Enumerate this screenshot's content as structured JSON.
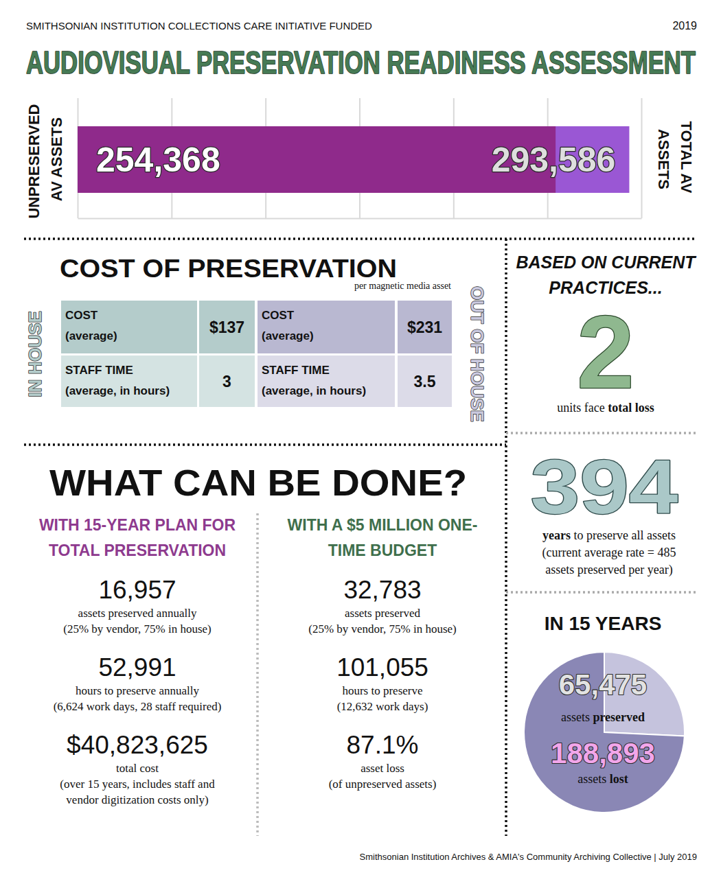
{
  "header": {
    "funder": "SMITHSONIAN INSTITUTION COLLECTIONS CARE INITIATIVE FUNDED",
    "year": "2019",
    "title": "AUDIOVISUAL PRESERVATION READINESS ASSESSMENT"
  },
  "chart_data": [
    {
      "type": "bar",
      "orientation": "horizontal",
      "categories": [
        null
      ],
      "series": [
        {
          "name": "UNPRESERVED AV ASSETS",
          "color": "#8f2a8b",
          "values": [
            254368
          ],
          "value_labels": [
            "254,368"
          ]
        },
        {
          "name": "TOTAL AV ASSETS",
          "color": "#9a57d4",
          "values": [
            293586
          ],
          "value_labels": [
            "293,586"
          ]
        }
      ],
      "xlim": [
        0,
        300000
      ],
      "xticks": [
        0,
        50000,
        100000,
        150000,
        200000,
        250000,
        300000
      ],
      "grid": true,
      "stacked": false,
      "tick_labels": false,
      "data_labels": true
    },
    {
      "type": "pie",
      "title": "IN 15 YEARS",
      "categories": [
        "assets preserved",
        "assets lost"
      ],
      "values": [
        65475,
        188893
      ],
      "value_labels": [
        "65,475",
        "188,893"
      ],
      "colors": [
        "#c5c3dd",
        "#8a87b5"
      ],
      "data_labels": true
    }
  ],
  "cost": {
    "title": "COST OF PRESERVATION",
    "subtitle": "per magnetic media asset",
    "groups": [
      {
        "label": "IN HOUSE",
        "rows": [
          {
            "label": [
              "COST",
              "(average)"
            ],
            "value": "$137"
          },
          {
            "label": [
              "STAFF TIME",
              "(average, in hours)"
            ],
            "value": "3"
          }
        ]
      },
      {
        "label": "OUT OF HOUSE",
        "rows": [
          {
            "label": [
              "COST",
              "(average)"
            ],
            "value": "$231"
          },
          {
            "label": [
              "STAFF TIME",
              "(average, in hours)"
            ],
            "value": "3.5"
          }
        ]
      }
    ]
  },
  "current": {
    "heading": [
      "BASED ON CURRENT",
      "PRACTICES..."
    ],
    "units": "2",
    "units_caption": [
      "units face ",
      "total loss"
    ],
    "years": "394",
    "years_caption": [
      "years",
      " to preserve all assets"
    ],
    "rate_note": [
      "(current average rate = 485",
      "assets preserved per year)"
    ]
  },
  "what": {
    "title": "WHAT CAN BE DONE?",
    "columns": [
      {
        "heading": [
          "WITH 15-YEAR PLAN FOR",
          "TOTAL PRESERVATION"
        ],
        "items": [
          {
            "value": "16,957",
            "lines": [
              "assets preserved annually",
              "(25% by vendor, 75% in house)"
            ]
          },
          {
            "value": "52,991",
            "lines": [
              "hours to preserve annually",
              "(6,624 work days, 28 staff required)"
            ]
          },
          {
            "value": "$40,823,625",
            "lines": [
              "total cost",
              "(over 15 years, includes staff and",
              "vendor digitization costs only)"
            ]
          }
        ]
      },
      {
        "heading": [
          "WITH A $5 MILLION ONE-",
          "TIME BUDGET"
        ],
        "items": [
          {
            "value": "32,783",
            "lines": [
              "assets preserved",
              "(25% by vendor, 75% in house)"
            ]
          },
          {
            "value": "101,055",
            "lines": [
              "hours to preserve",
              "(12,632 work days)"
            ]
          },
          {
            "value": "87.1%",
            "lines": [
              "asset loss",
              "(of unpreserved assets)"
            ]
          }
        ]
      }
    ]
  },
  "footer": "Smithsonian Institution Archives & AMIA's Community Archiving Collective | July 2019"
}
